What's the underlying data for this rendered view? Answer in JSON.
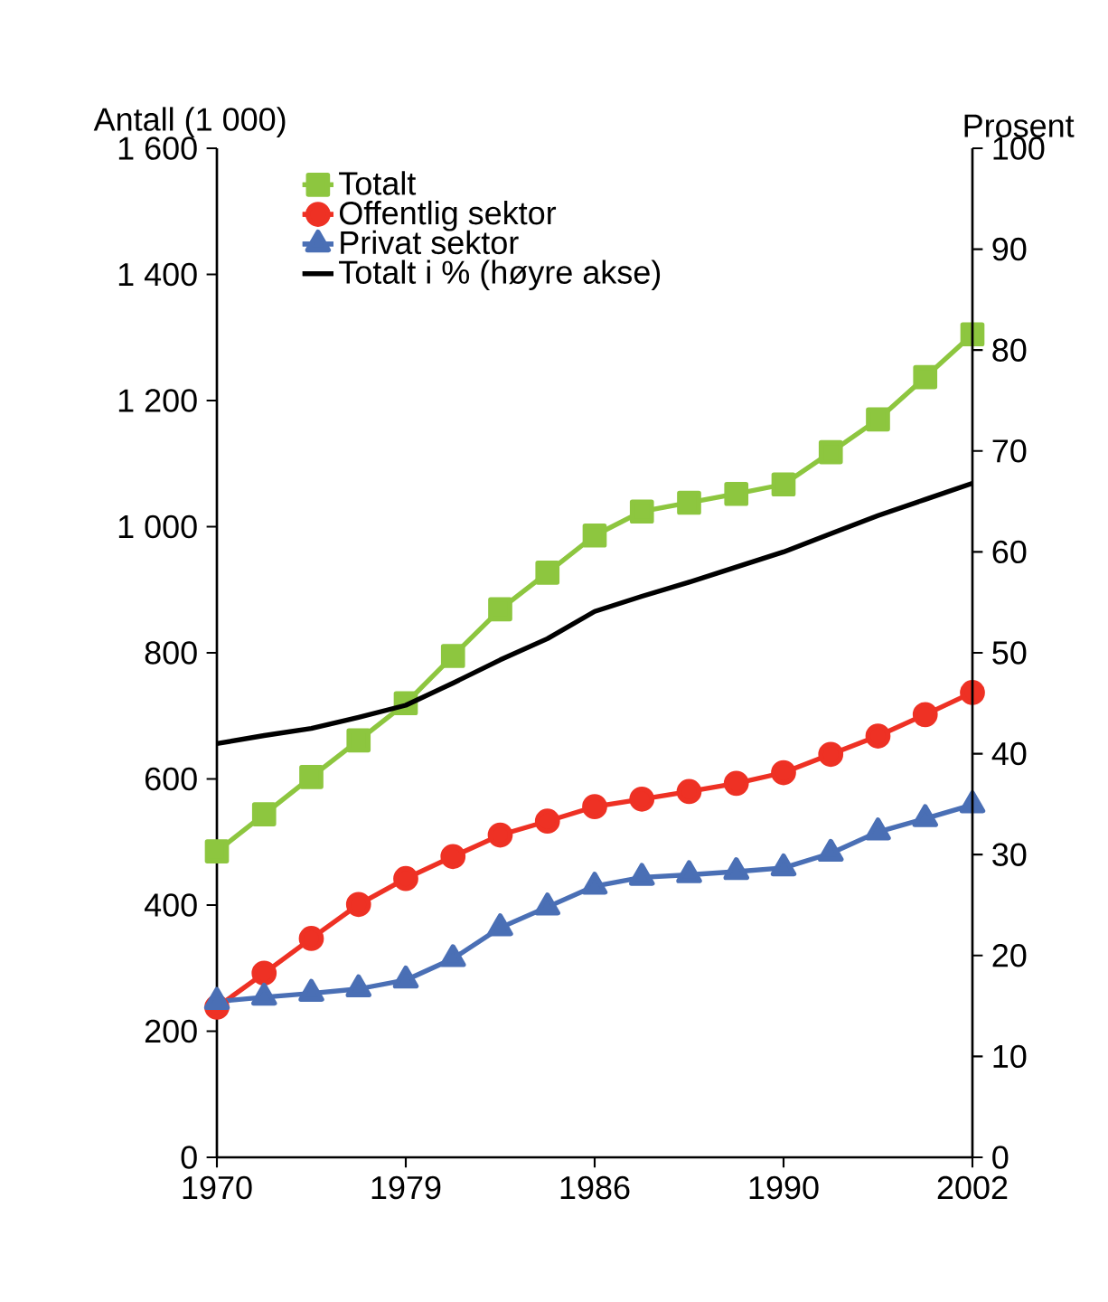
{
  "chart_data": {
    "type": "line",
    "ylabel": "Antall (1 000)",
    "y2label": "Prosent",
    "categories": [
      "1970",
      null,
      null,
      null,
      "1979",
      null,
      null,
      null,
      "1986",
      null,
      null,
      null,
      "1990",
      null,
      null,
      null,
      "2002"
    ],
    "series": [
      {
        "name": "Totalt",
        "color": "#8dc63f",
        "marker": "square",
        "values": [
          485,
          544,
          603,
          661,
          720,
          795,
          869,
          927,
          986,
          1024,
          1038,
          1052,
          1067,
          1118,
          1170,
          1237,
          1305
        ]
      },
      {
        "name": "Offentlig sektor",
        "color": "#ee3124",
        "marker": "circle",
        "values": [
          238,
          292,
          347,
          401,
          442,
          477,
          511,
          533,
          556,
          568,
          580,
          593,
          610,
          639,
          668,
          702,
          737
        ]
      },
      {
        "name": "Privat sektor",
        "color": "#4a6fb5",
        "marker": "triangle",
        "values": [
          247,
          254,
          260,
          267,
          281,
          315,
          364,
          397,
          430,
          444,
          448,
          453,
          459,
          482,
          516,
          537,
          559
        ]
      },
      {
        "name": "Totalt i % (høyre akse)",
        "color": "#000000",
        "marker": "none",
        "axis": "y2",
        "values": [
          41.0,
          41.8,
          42.5,
          43.6,
          44.8,
          47.0,
          49.3,
          51.4,
          54.1,
          55.6,
          57.0,
          58.5,
          60.0,
          61.8,
          63.6,
          65.2,
          66.8
        ]
      }
    ],
    "ylim": [
      0,
      1600
    ],
    "yticks": [
      0,
      200,
      400,
      600,
      800,
      {
        "value": 1000,
        "label": "1 000"
      },
      {
        "value": 1200,
        "label": "1 200"
      },
      {
        "value": 1400,
        "label": "1 400"
      },
      {
        "value": 1600,
        "label": "1 600"
      }
    ],
    "y2lim": [
      0,
      100
    ],
    "y2ticks": [
      0,
      10,
      20,
      30,
      40,
      50,
      60,
      70,
      80,
      90,
      100
    ],
    "legend": "top left",
    "grid": false
  }
}
